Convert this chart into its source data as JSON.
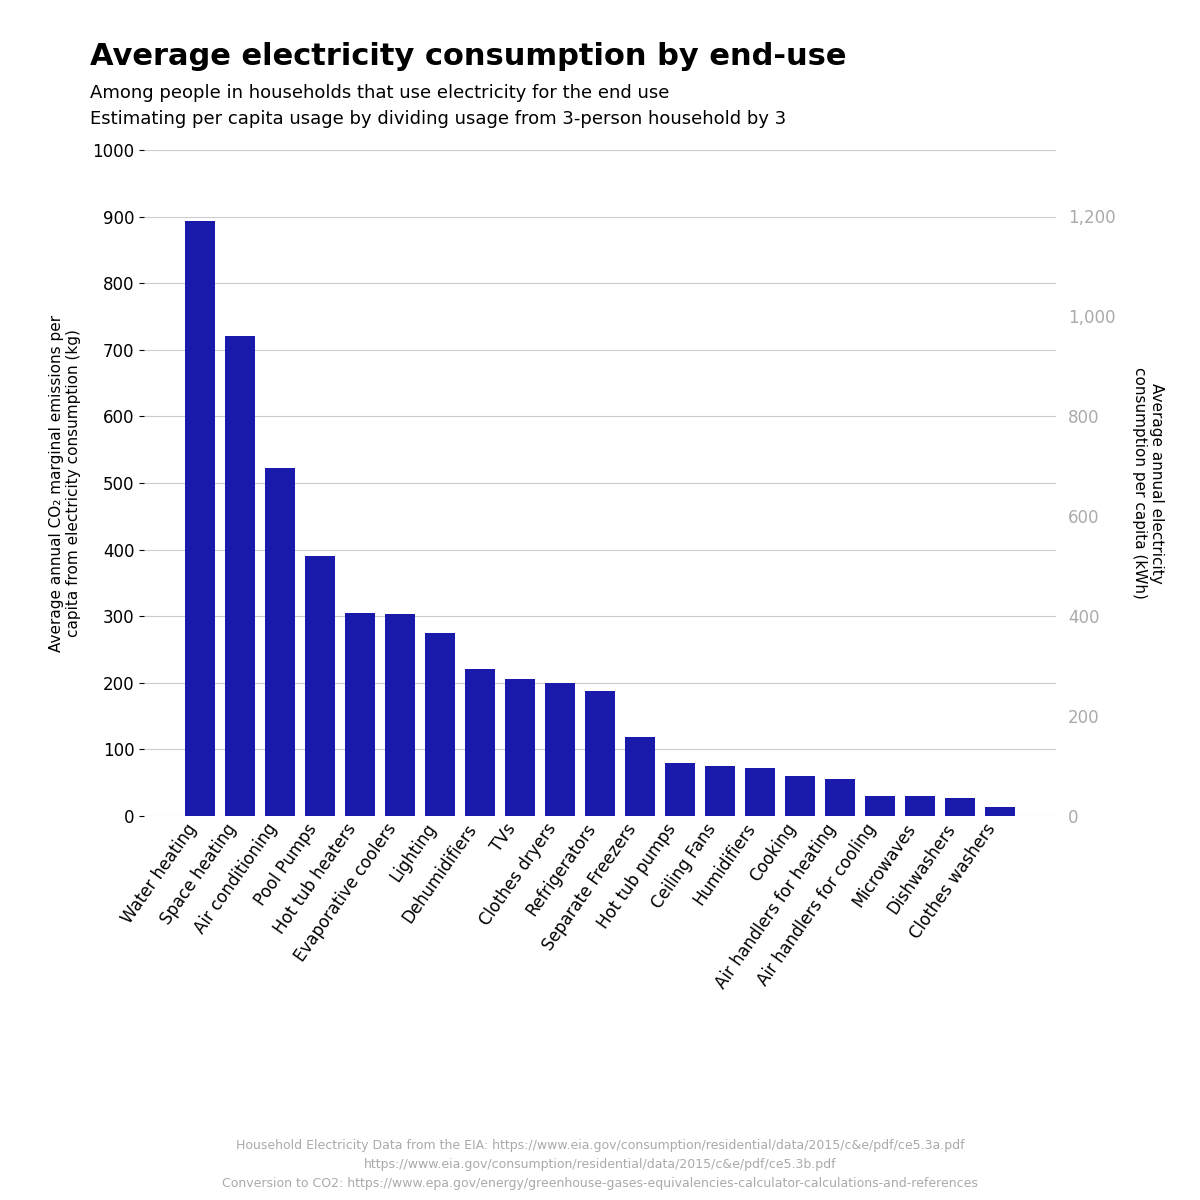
{
  "title": "Average electricity consumption by end-use",
  "subtitle1": "Among people in households that use electricity for the end use",
  "subtitle2": "Estimating per capita usage by dividing usage from 3-person household by 3",
  "ylabel_left": "Average annual CO₂ marginal emissions per\ncapita from electricity consumption (kg)",
  "ylabel_right": "Average annual electricity\nconsumption per capita (kWh)",
  "categories": [
    "Water heating",
    "Space heating",
    "Air conditioning",
    "Pool Pumps",
    "Hot tub heaters",
    "Evaporative coolers",
    "Lighting",
    "Dehumidifiers",
    "TVs",
    "Clothes dryers",
    "Refrigerators",
    "Separate Freezers",
    "Hot tub pumps",
    "Ceiling Fans",
    "Humidifiers",
    "Cooking",
    "Air handlers for heating",
    "Air handlers for cooling",
    "Microwaves",
    "Dishwashers",
    "Clothes washers"
  ],
  "values_kg": [
    893,
    720,
    523,
    390,
    305,
    303,
    275,
    220,
    205,
    200,
    187,
    118,
    80,
    75,
    72,
    60,
    55,
    30,
    30,
    27,
    13
  ],
  "bar_color": "#1a1aaa",
  "ylim_left": [
    0,
    1000
  ],
  "ylim_right": [
    0,
    1333
  ],
  "yticks_left": [
    0,
    100,
    200,
    300,
    400,
    500,
    600,
    700,
    800,
    900,
    1000
  ],
  "yticks_right": [
    0,
    200,
    400,
    600,
    800,
    1000,
    1200
  ],
  "footnote1": "Household Electricity Data from the EIA: https://www.eia.gov/consumption/residential/data/2015/c&e/pdf/ce5.3a.pdf",
  "footnote2": "https://www.eia.gov/consumption/residential/data/2015/c&e/pdf/ce5.3b.pdf",
  "footnote3": "Conversion to CO2: https://www.epa.gov/energy/greenhouse-gases-equivalencies-calculator-calculations-and-references",
  "bg_color": "#ffffff",
  "grid_color": "#cccccc",
  "title_fontsize": 22,
  "subtitle_fontsize": 13,
  "axis_label_fontsize": 11,
  "tick_fontsize": 12
}
